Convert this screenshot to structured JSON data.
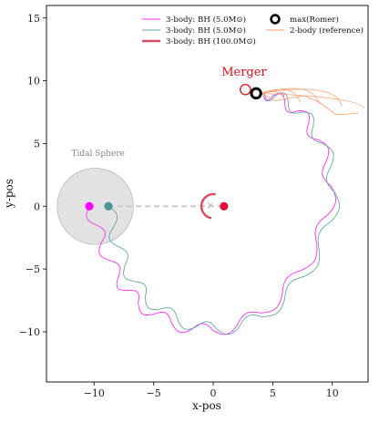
{
  "chart_data": {
    "type": "line",
    "title": "",
    "xlabel": "x-pos",
    "ylabel": "y-pos",
    "xlim": [
      -14,
      13
    ],
    "ylim": [
      -14,
      16
    ],
    "xticks": [
      -10,
      -5,
      0,
      5,
      10
    ],
    "yticks": [
      -10,
      -5,
      0,
      5,
      10,
      15
    ],
    "xtick_labels": [
      "−10",
      "−5",
      "0",
      "5",
      "10"
    ],
    "ytick_labels": [
      "−10",
      "−5",
      "0",
      "5",
      "10",
      "15"
    ],
    "grid": false,
    "legend": {
      "placement": "top-right",
      "entries": [
        {
          "label": "3-body: BH (5.0M⊙)",
          "color": "#ff33ff",
          "style": "line"
        },
        {
          "label": "3-body: BH (5.0M⊙)",
          "color": "#66a8a4",
          "style": "line"
        },
        {
          "label": "3-body: BH (100.0M⊙)",
          "color": "#d94a62",
          "style": "thick-line"
        },
        {
          "label": "max(Romer)",
          "color": "#000000",
          "style": "ring"
        },
        {
          "label": "2-body (reference)",
          "color": "#f5a070",
          "style": "line"
        }
      ]
    },
    "annotations": [
      {
        "text": "Merger",
        "x": 0.7,
        "y": 10.4,
        "color": "#e0101a"
      },
      {
        "text": "Tidal Sphere",
        "x": -11.9,
        "y": 4.0,
        "color": "#888888"
      }
    ],
    "tidal_sphere": {
      "center": [
        -9.9,
        0
      ],
      "radius": 3.2,
      "fill": "#dddddd"
    },
    "series": [
      {
        "name": "3-body: BH (5.0M⊙)",
        "color": "#ff33ff",
        "x": [
          -10.4,
          -9.8,
          -9.4,
          -8.7,
          -8.0,
          -7.2,
          -6.3,
          -5.0,
          -3.5,
          -1.8,
          0.0,
          2.0,
          4.0,
          5.8,
          7.4,
          8.7,
          9.6,
          9.9,
          9.5,
          8.8,
          8.0,
          7.1,
          6.0,
          5.0,
          4.2
        ],
        "y": [
          0.0,
          -1.5,
          -2.9,
          -4.3,
          -5.7,
          -6.7,
          -7.7,
          -8.6,
          -9.3,
          -9.8,
          -9.9,
          -9.5,
          -8.5,
          -7.0,
          -5.1,
          -3.0,
          -0.7,
          1.6,
          3.6,
          5.3,
          6.6,
          7.6,
          8.3,
          8.8,
          9.0
        ]
      },
      {
        "name": "3-body: BH (5.0M⊙)",
        "color": "#66a8a4",
        "x": [
          -8.8,
          -8.4,
          -8.0,
          -7.4,
          -6.6,
          -5.7,
          -4.5,
          -3.0,
          -1.4,
          0.3,
          2.2,
          4.1,
          6.0,
          7.6,
          8.9,
          9.9,
          10.2,
          9.9,
          9.2,
          8.4,
          7.4,
          6.3,
          5.2,
          4.3
        ],
        "y": [
          0.0,
          -1.7,
          -3.2,
          -4.7,
          -6.0,
          -7.2,
          -8.2,
          -9.0,
          -9.6,
          -9.8,
          -9.6,
          -8.8,
          -7.4,
          -5.6,
          -3.5,
          -1.2,
          1.1,
          3.2,
          5.0,
          6.4,
          7.5,
          8.3,
          8.8,
          9.0
        ]
      },
      {
        "name": "2-body (reference)",
        "color": "#f5a070",
        "x": [
          4.0,
          5.2,
          6.4,
          7.6,
          8.9,
          10.3,
          12.2
        ],
        "y": [
          9.0,
          8.4,
          8.6,
          8.8,
          8.3,
          7.3,
          7.4
        ]
      }
    ],
    "points": [
      {
        "label": "3-body: BH (5.0M⊙)",
        "x": -10.4,
        "y": 0.0,
        "color": "#ff00ff",
        "shape": "dot"
      },
      {
        "label": "3-body: BH (5.0M⊙)",
        "x": -8.8,
        "y": 0.0,
        "color": "#4a9497",
        "shape": "dot"
      },
      {
        "label": "3-body: BH (100.0M⊙)",
        "x": 0.9,
        "y": 0.0,
        "color": "#e0103a",
        "shape": "dot"
      },
      {
        "label": "max(Romer)",
        "x": 3.6,
        "y": 9.0,
        "color": "#000000",
        "shape": "ring"
      },
      {
        "label": "max(Romer)",
        "x": 2.7,
        "y": 9.3,
        "color": "#e0101a",
        "shape": "ring"
      }
    ]
  }
}
